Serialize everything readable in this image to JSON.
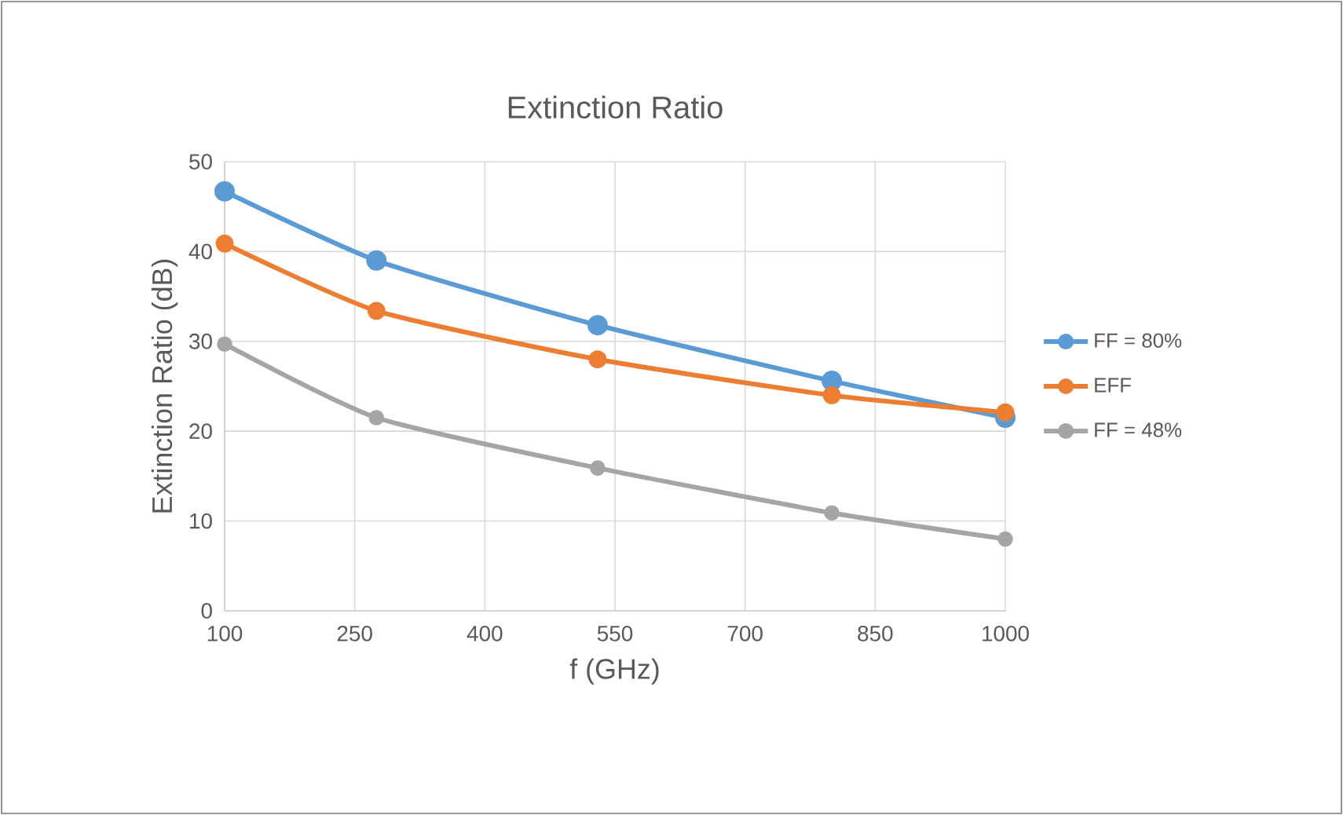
{
  "chart_data": {
    "type": "line",
    "title": "Extinction Ratio",
    "xlabel": "f (GHz)",
    "ylabel": "Extinction Ratio (dB)",
    "x": [
      100,
      275,
      530,
      800,
      1000
    ],
    "series": [
      {
        "name": "FF = 80%",
        "color": "#5b9bd5",
        "values": [
          46.7,
          39.0,
          31.8,
          25.6,
          21.5
        ]
      },
      {
        "name": "EFF",
        "color": "#ed7d31",
        "values": [
          40.9,
          33.4,
          28.0,
          24.0,
          22.1
        ]
      },
      {
        "name": "FF = 48%",
        "color": "#a5a5a5",
        "values": [
          29.7,
          21.5,
          15.9,
          10.9,
          8.0
        ]
      }
    ],
    "xlim": [
      100,
      1000
    ],
    "xticks": [
      100,
      250,
      400,
      550,
      700,
      850,
      1000
    ],
    "ylim": [
      0,
      50
    ],
    "yticks": [
      0,
      10,
      20,
      30,
      40,
      50
    ],
    "grid": true,
    "legend": "right",
    "marker": "circle",
    "line_style": "solid"
  }
}
